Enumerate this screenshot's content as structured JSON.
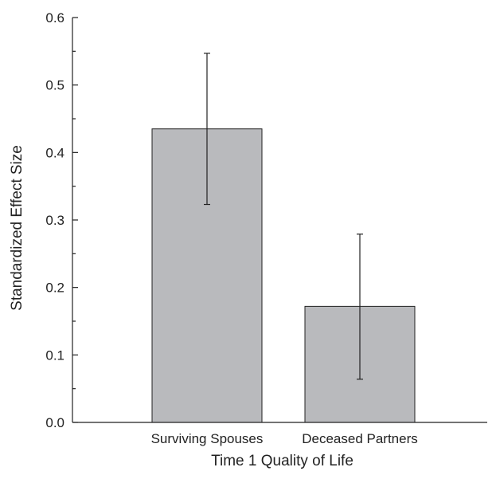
{
  "chart_data": {
    "type": "bar",
    "categories": [
      "Surviving Spouses",
      "Deceased Partners"
    ],
    "values": [
      0.435,
      0.172
    ],
    "error_low": [
      0.323,
      0.064
    ],
    "error_high": [
      0.547,
      0.279
    ],
    "title": "",
    "xlabel": "Time 1 Quality of Life",
    "ylabel": "Standardized Effect Size",
    "ylim": [
      0,
      0.6
    ],
    "yticks": [
      0.0,
      0.1,
      0.2,
      0.3,
      0.4,
      0.5,
      0.6
    ],
    "ytick_labels": [
      "0.0",
      "0.1",
      "0.2",
      "0.3",
      "0.4",
      "0.5",
      "0.6"
    ],
    "bar_color": "#b9babd",
    "grid": false,
    "legend": "none"
  }
}
